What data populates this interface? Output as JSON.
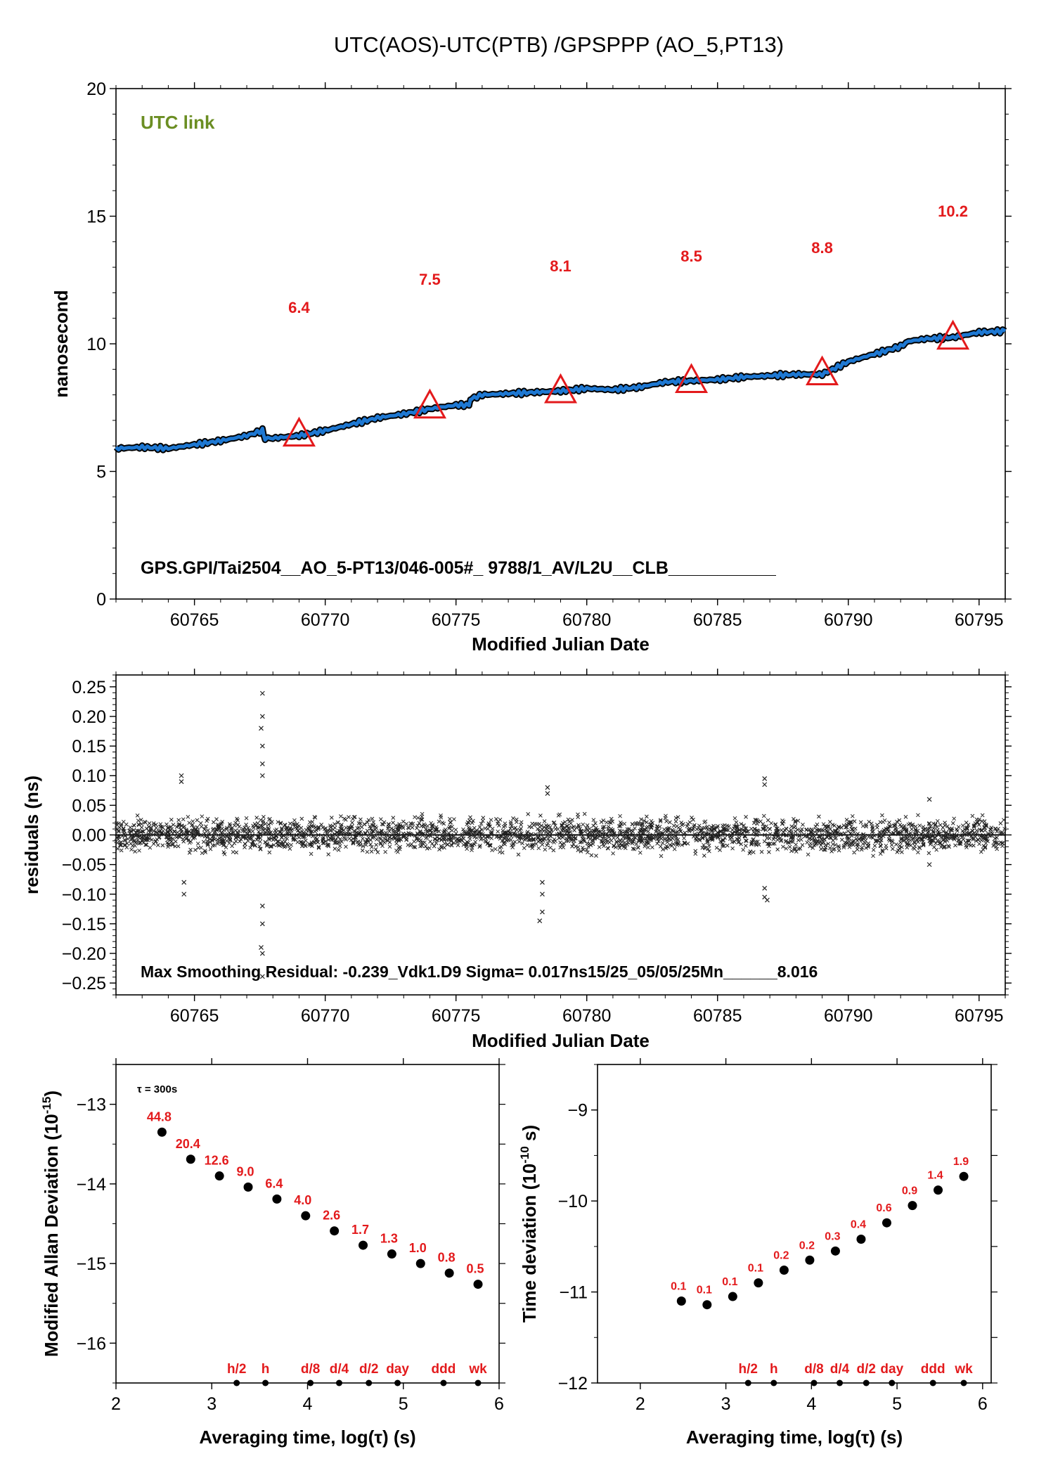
{
  "title": "UTC(AOS)-UTC(PTB)  /GPSPPP  (AO_5,PT13)",
  "colors": {
    "series": "#1e78d2",
    "marker": "#e31a1c",
    "label": "#e31a1c",
    "utc_link": "#6b8e23",
    "dots": "#000000"
  },
  "chart_data": [
    {
      "type": "line",
      "panel": "top",
      "annotation": "UTC link",
      "footer": "GPS.GPI/Tai2504__AO_5-PT13/046-005#_  9788/1_AV/L2U__CLB___________",
      "xlabel": "Modified Julian Date",
      "ylabel": "nanosecond",
      "xlim": [
        60762,
        60796
      ],
      "ylim": [
        0,
        20
      ],
      "xticks": [
        60765,
        60770,
        60775,
        60780,
        60785,
        60790,
        60795
      ],
      "yticks": [
        0,
        5,
        10,
        15,
        20
      ],
      "series": [
        {
          "x": [
            60762,
            60763,
            60764,
            60765,
            60766,
            60767,
            60767.6,
            60767.7,
            60768,
            60769,
            60770,
            60771,
            60772,
            60773,
            60774,
            60775,
            60775.5,
            60775.6,
            60776,
            60777,
            60778,
            60779,
            60780,
            60781,
            60782,
            60783,
            60784,
            60785,
            60786,
            60787,
            60788,
            60789,
            60790,
            60791,
            60792,
            60792.3,
            60793,
            60794,
            60795,
            60796
          ],
          "y": [
            5.9,
            5.95,
            5.9,
            6.05,
            6.2,
            6.4,
            6.6,
            6.3,
            6.3,
            6.4,
            6.6,
            6.85,
            7.1,
            7.25,
            7.45,
            7.6,
            7.6,
            7.85,
            8.0,
            8.05,
            8.1,
            8.15,
            8.25,
            8.2,
            8.3,
            8.5,
            8.55,
            8.6,
            8.7,
            8.75,
            8.8,
            8.8,
            9.3,
            9.6,
            9.9,
            10.1,
            10.2,
            10.25,
            10.45,
            10.5
          ]
        }
      ],
      "markers": [
        {
          "x": 60769,
          "y": 6.4,
          "label": "6.4"
        },
        {
          "x": 60774,
          "y": 7.5,
          "label": "7.5"
        },
        {
          "x": 60779,
          "y": 8.1,
          "label": "8.1"
        },
        {
          "x": 60784,
          "y": 8.5,
          "label": "8.5"
        },
        {
          "x": 60789,
          "y": 8.8,
          "label": "8.8"
        },
        {
          "x": 60794,
          "y": 10.2,
          "label": "10.2"
        }
      ]
    },
    {
      "type": "scatter",
      "panel": "residuals",
      "annotation": "Max Smoothing Residual: -0.239_Vdk1.D9  Sigma= 0.017ns15/25_05/05/25Mn______8.016",
      "xlabel": "Modified Julian Date",
      "ylabel": "residuals (ns)",
      "xlim": [
        60762,
        60796
      ],
      "ylim": [
        -0.27,
        0.27
      ],
      "xticks": [
        60765,
        60770,
        60775,
        60780,
        60785,
        60790,
        60795
      ],
      "yticks": [
        -0.25,
        -0.2,
        -0.15,
        -0.1,
        -0.05,
        0.0,
        0.05,
        0.1,
        0.15,
        0.2,
        0.25
      ],
      "ytick_labels": [
        "−0.25",
        "−0.20",
        "−0.15",
        "−0.10",
        "−0.05",
        "0.00",
        "0.05",
        "0.10",
        "0.15",
        "0.20",
        "0.25"
      ],
      "sigma": 0.017,
      "outliers": [
        {
          "x": 60767.6,
          "y": 0.239
        },
        {
          "x": 60767.6,
          "y": 0.2
        },
        {
          "x": 60767.55,
          "y": 0.18
        },
        {
          "x": 60767.6,
          "y": 0.15
        },
        {
          "x": 60767.6,
          "y": 0.12
        },
        {
          "x": 60767.6,
          "y": 0.1
        },
        {
          "x": 60767.6,
          "y": -0.12
        },
        {
          "x": 60767.6,
          "y": -0.15
        },
        {
          "x": 60767.55,
          "y": -0.19
        },
        {
          "x": 60767.6,
          "y": -0.2
        },
        {
          "x": 60767.6,
          "y": -0.239
        },
        {
          "x": 60764.5,
          "y": 0.1
        },
        {
          "x": 60764.5,
          "y": 0.09
        },
        {
          "x": 60764.6,
          "y": -0.08
        },
        {
          "x": 60764.6,
          "y": -0.1
        },
        {
          "x": 60778.3,
          "y": -0.08
        },
        {
          "x": 60778.3,
          "y": -0.1
        },
        {
          "x": 60778.3,
          "y": -0.13
        },
        {
          "x": 60778.2,
          "y": -0.145
        },
        {
          "x": 60778.5,
          "y": 0.08
        },
        {
          "x": 60778.5,
          "y": 0.07
        },
        {
          "x": 60786.8,
          "y": 0.095
        },
        {
          "x": 60786.8,
          "y": 0.085
        },
        {
          "x": 60786.8,
          "y": -0.09
        },
        {
          "x": 60786.8,
          "y": -0.105
        },
        {
          "x": 60786.9,
          "y": -0.11
        },
        {
          "x": 60793.1,
          "y": 0.06
        },
        {
          "x": 60793.1,
          "y": -0.05
        }
      ]
    },
    {
      "type": "scatter",
      "panel": "mdev",
      "note": "τ = 300s",
      "xlabel": "Averaging time, log(τ) (s)",
      "ylabel": "Modified Allan Deviation (10",
      "ylabel_sup": "-15",
      "ylabel_end": ")",
      "xlim": [
        2,
        6
      ],
      "ylim": [
        -16.5,
        -12.5
      ],
      "xticks": [
        2,
        3,
        4,
        5,
        6
      ],
      "yticks": [
        -16,
        -15,
        -14,
        -13
      ],
      "ytick_labels": [
        "−16",
        "−15",
        "−14",
        "−13"
      ],
      "x": [
        2.48,
        2.78,
        3.08,
        3.38,
        3.68,
        3.98,
        4.28,
        4.58,
        4.88,
        5.18,
        5.48,
        5.78
      ],
      "y": [
        -13.35,
        -13.69,
        -13.9,
        -14.04,
        -14.19,
        -14.4,
        -14.59,
        -14.77,
        -14.88,
        -15.0,
        -15.12,
        -15.26
      ],
      "labels": [
        "44.8",
        "20.4",
        "12.6",
        "9.0",
        "6.4",
        "4.0",
        "2.6",
        "1.7",
        "1.3",
        "1.0",
        "0.8",
        "0.5"
      ],
      "time_marks": [
        {
          "x": 3.26,
          "label": "h/2"
        },
        {
          "x": 3.56,
          "label": "h"
        },
        {
          "x": 4.03,
          "label": "d/8"
        },
        {
          "x": 4.33,
          "label": "d/4"
        },
        {
          "x": 4.64,
          "label": "d/2"
        },
        {
          "x": 4.94,
          "label": "day"
        },
        {
          "x": 5.42,
          "label": "ddd"
        },
        {
          "x": 5.78,
          "label": "wk"
        }
      ]
    },
    {
      "type": "scatter",
      "panel": "tdev",
      "xlabel": "Averaging time, log(τ) (s)",
      "ylabel": "Time deviation (10",
      "ylabel_sup": "-10",
      "ylabel_end": " s)",
      "xlim": [
        1.5,
        6.1
      ],
      "ylim": [
        -12,
        -8.5
      ],
      "xticks": [
        2,
        3,
        4,
        5,
        6
      ],
      "yticks": [
        -12,
        -11,
        -10,
        -9
      ],
      "ytick_labels": [
        "−12",
        "−11",
        "−10",
        "−9"
      ],
      "x": [
        2.48,
        2.78,
        3.08,
        3.38,
        3.68,
        3.98,
        4.28,
        4.58,
        4.88,
        5.18,
        5.48,
        5.78
      ],
      "y": [
        -11.1,
        -11.14,
        -11.05,
        -10.9,
        -10.76,
        -10.65,
        -10.55,
        -10.42,
        -10.24,
        -10.05,
        -9.88,
        -9.73
      ],
      "labels": [
        "0.1",
        "0.1",
        "0.1",
        "0.1",
        "0.2",
        "0.2",
        "0.3",
        "0.4",
        "0.6",
        "0.9",
        "1.4",
        "1.9"
      ],
      "time_marks": [
        {
          "x": 3.26,
          "label": "h/2"
        },
        {
          "x": 3.56,
          "label": "h"
        },
        {
          "x": 4.03,
          "label": "d/8"
        },
        {
          "x": 4.33,
          "label": "d/4"
        },
        {
          "x": 4.64,
          "label": "d/2"
        },
        {
          "x": 4.94,
          "label": "day"
        },
        {
          "x": 5.42,
          "label": "ddd"
        },
        {
          "x": 5.78,
          "label": "wk"
        }
      ]
    }
  ]
}
